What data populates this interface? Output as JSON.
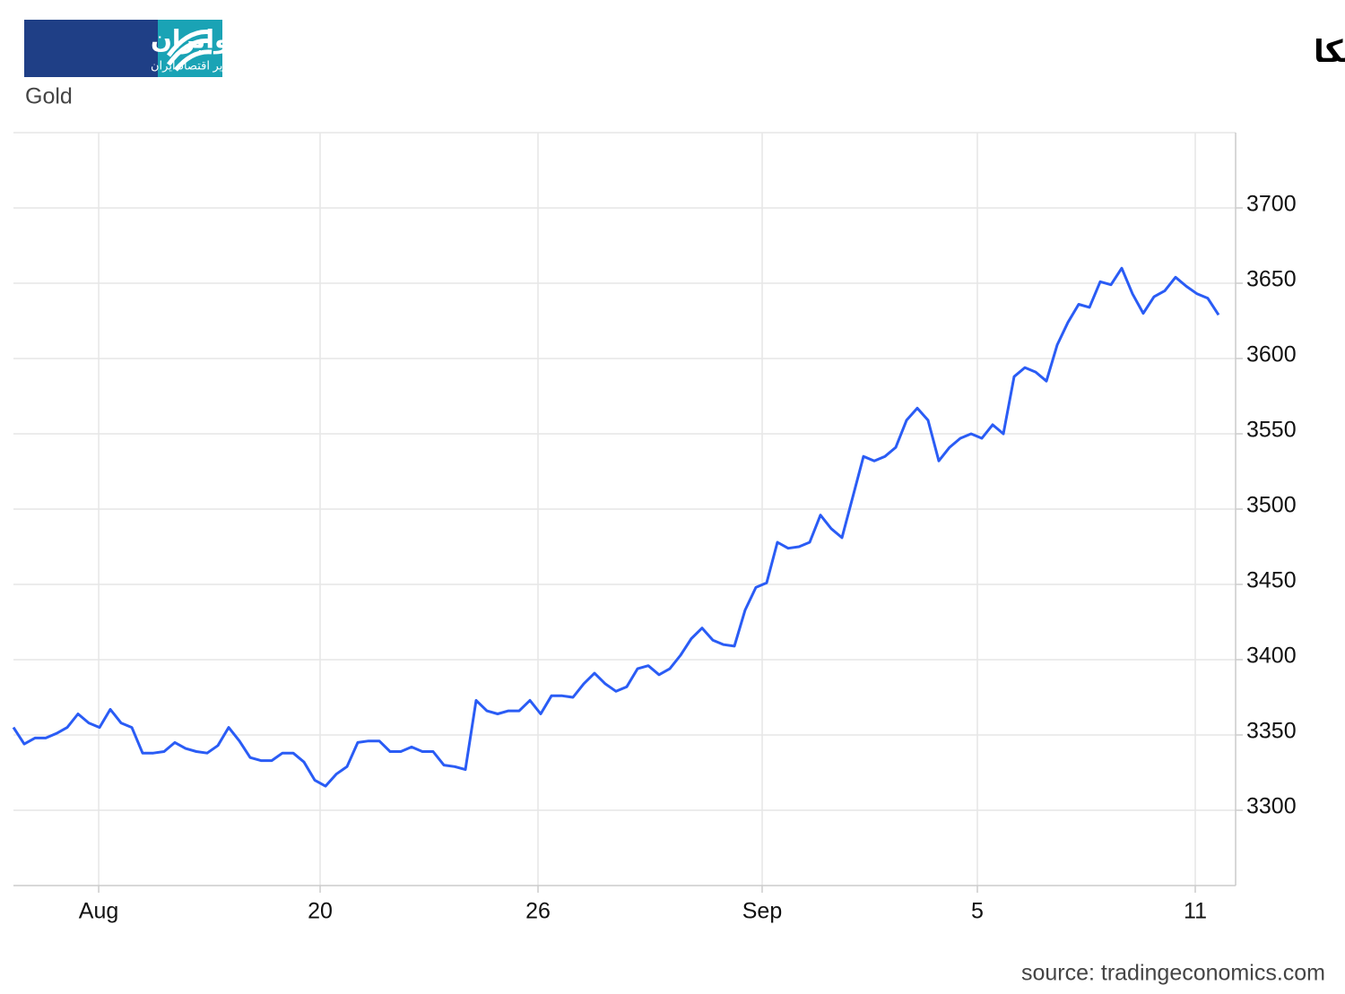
{
  "chart_data": {
    "type": "line",
    "title": "تثبیت طلا در قله‌های قیمتی در آستانه انتشار داده‌های تورمی آمریکا",
    "subtitle": "Gold",
    "source": "source: tradingeconomics.com",
    "logo": {
      "name": "اکوایران",
      "tagline": "تصویر اقتصاد ایران"
    },
    "color": "#2a5cf5",
    "grid": true,
    "xlim": [
      0,
      113.58
    ],
    "xticks": [
      {
        "value": 7.92,
        "label": "Aug"
      },
      {
        "value": 28.5,
        "label": "20"
      },
      {
        "value": 48.75,
        "label": "26"
      },
      {
        "value": 69.58,
        "label": "Sep"
      },
      {
        "value": 89.58,
        "label": "5"
      },
      {
        "value": 109.83,
        "label": "11"
      }
    ],
    "ylim": [
      3250,
      3750
    ],
    "yticks": [
      3300,
      3350,
      3400,
      3450,
      3500,
      3550,
      3600,
      3650,
      3700
    ],
    "values": [
      3355,
      3344,
      3348,
      3348,
      3351,
      3355,
      3364,
      3358,
      3355,
      3367,
      3358,
      3355,
      3338,
      3338,
      3339,
      3345,
      3341,
      3339,
      3338,
      3343,
      3355,
      3346,
      3335,
      3333,
      3333,
      3338,
      3338,
      3332,
      3320,
      3316,
      3324,
      3329,
      3345,
      3346,
      3346,
      3339,
      3339,
      3342,
      3339,
      3339,
      3330,
      3329,
      3327,
      3373,
      3366,
      3364,
      3366,
      3366,
      3373,
      3364,
      3376,
      3376,
      3375,
      3384,
      3391,
      3384,
      3379,
      3382,
      3394,
      3396,
      3390,
      3394,
      3403,
      3414,
      3421,
      3413,
      3410,
      3409,
      3433,
      3448,
      3451,
      3478,
      3474,
      3475,
      3478,
      3496,
      3487,
      3481,
      3508,
      3535,
      3532,
      3535,
      3541,
      3559,
      3567,
      3559,
      3532,
      3541,
      3547,
      3550,
      3547,
      3556,
      3550,
      3588,
      3594,
      3591,
      3585,
      3609,
      3624,
      3636,
      3634,
      3651,
      3649,
      3660,
      3643,
      3630,
      3641,
      3645,
      3654,
      3648,
      3643,
      3640,
      3629
    ]
  }
}
